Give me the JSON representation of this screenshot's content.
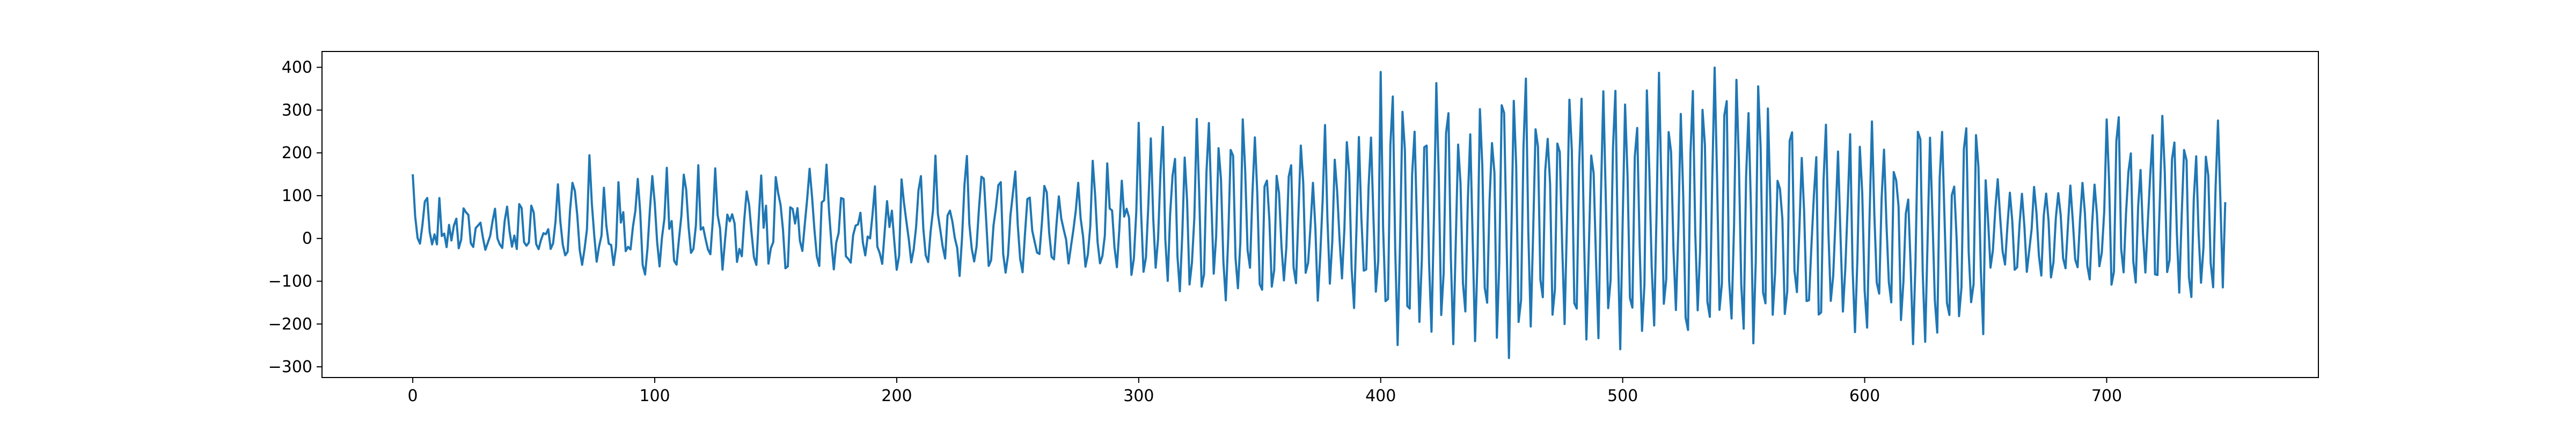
{
  "chart_data": {
    "type": "line",
    "title": "",
    "xlabel": "",
    "ylabel": "",
    "xlim": [
      -37.5,
      787.5
    ],
    "ylim": [
      -325,
      437
    ],
    "x_ticks": [
      0,
      100,
      200,
      300,
      400,
      500,
      600,
      700
    ],
    "y_ticks": [
      -300,
      -200,
      -100,
      0,
      100,
      200,
      300,
      400
    ],
    "grid": false,
    "legend": "none",
    "series_color": "#1f77b4",
    "series": [
      {
        "x_start": 0,
        "x_step": 1,
        "count": 750,
        "segments": [
          {
            "from": 0,
            "to": 60,
            "max_low": -30,
            "max_high": 140,
            "min_low": -30,
            "min_high": -10,
            "period": 5.5
          },
          {
            "from": 60,
            "to": 300,
            "max_low": 20,
            "max_high": 200,
            "min_low": -90,
            "min_high": -20,
            "period": 6.5
          },
          {
            "from": 300,
            "to": 400,
            "max_low": 120,
            "max_high": 290,
            "min_low": -180,
            "min_high": -60,
            "period": 4.8
          },
          {
            "from": 400,
            "to": 560,
            "max_low": 220,
            "max_high": 405,
            "min_low": -290,
            "min_high": -150,
            "period": 4.6
          },
          {
            "from": 560,
            "to": 650,
            "max_low": 100,
            "max_high": 320,
            "min_low": -250,
            "min_high": -120,
            "period": 4.8
          },
          {
            "from": 650,
            "to": 700,
            "max_low": 80,
            "max_high": 140,
            "min_low": -120,
            "min_high": -40,
            "period": 5.0
          },
          {
            "from": 700,
            "to": 750,
            "max_low": 150,
            "max_high": 315,
            "min_low": -175,
            "min_high": -60,
            "period": 4.6
          }
        ],
        "first_value": 150,
        "last_value": 85
      }
    ]
  }
}
